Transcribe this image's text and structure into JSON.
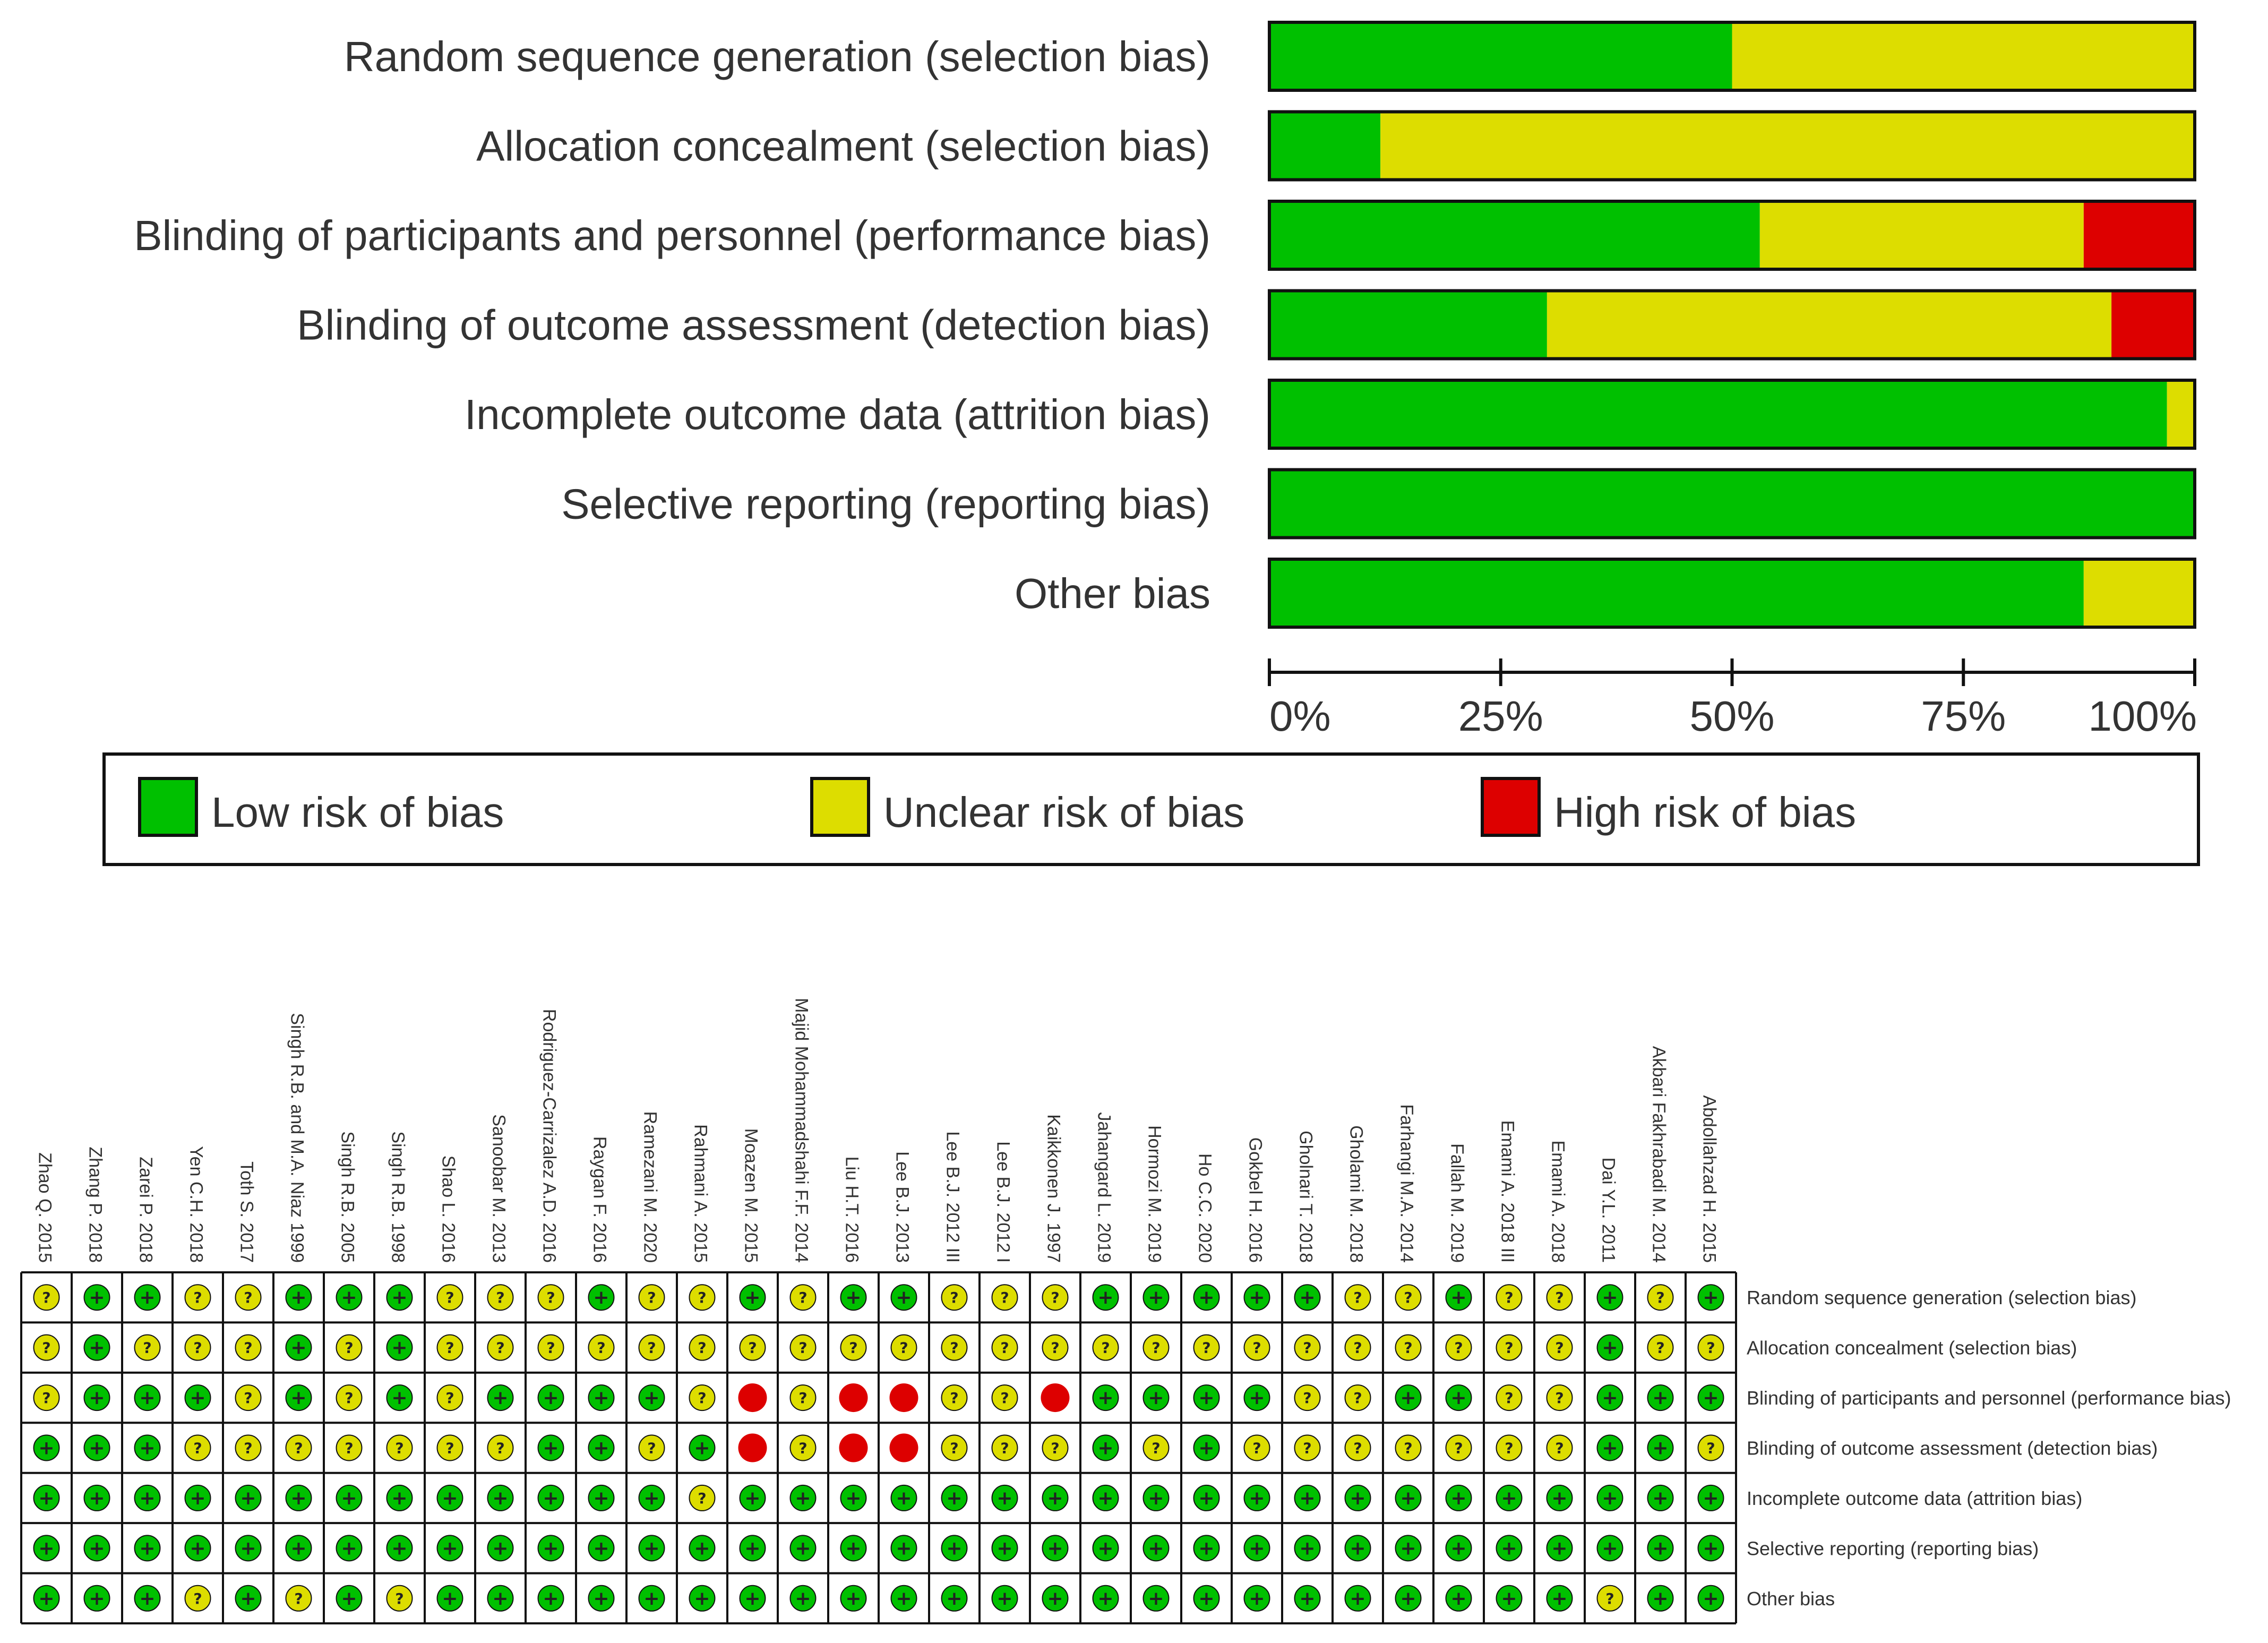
{
  "chart_data": [
    {
      "type": "bar",
      "subtype": "stacked-horizontal-percent",
      "title": "",
      "categories": [
        "Random sequence generation (selection bias)",
        "Allocation concealment (selection bias)",
        "Blinding of participants and personnel (performance bias)",
        "Blinding of outcome assessment (detection bias)",
        "Incomplete outcome data (attrition bias)",
        "Selective reporting (reporting bias)",
        "Other bias"
      ],
      "series": [
        {
          "name": "Low risk of bias",
          "color": "#00c000",
          "values": [
            50,
            12,
            53,
            30,
            97,
            100,
            88
          ]
        },
        {
          "name": "Unclear risk of bias",
          "color": "#dddd00",
          "values": [
            50,
            88,
            35,
            61,
            3,
            0,
            12
          ]
        },
        {
          "name": "High risk of bias",
          "color": "#dd0000",
          "values": [
            0,
            0,
            12,
            9,
            0,
            0,
            0
          ]
        }
      ],
      "xlim": [
        0,
        100
      ],
      "xticks": [
        "0%",
        "25%",
        "50%",
        "75%",
        "100%"
      ],
      "legend": "bottom",
      "legend_labels": [
        "Low risk of bias",
        "Unclear risk of bias",
        "High risk of bias"
      ]
    },
    {
      "type": "table",
      "subtype": "risk-of-bias-summary",
      "studies": [
        "Zhao Q. 2015",
        "Zhang P. 2018",
        "Zarei P. 2018",
        "Yen C.H. 2018",
        "Toth S. 2017",
        "Singh R.B. and M.A. Niaz 1999",
        "Singh R.B. 2005",
        "Singh R.B. 1998",
        "Shao L. 2016",
        "Sanoobar M. 2013",
        "Rodriguez-Carrizalez A.D. 2016",
        "Raygan F. 2016",
        "Ramezani M. 2020",
        "Rahmani A. 2015",
        "Moazen M. 2015",
        "Majid Mohammadshahi F.F. 2014",
        "Liu H.T. 2016",
        "Lee B.J. 2013",
        "Lee B.J. 2012 III",
        "Lee B.J. 2012 I",
        "Kaikkonen J. 1997",
        "Jahangard L. 2019",
        "Hormozi M. 2019",
        "Ho C.C. 2020",
        "Gokbel H. 2016",
        "Gholnari T. 2018",
        "Gholami M. 2018",
        "Farhangi M.A. 2014",
        "Fallah M. 2019",
        "Emami A. 2018 III",
        "Emami A. 2018",
        "Dai Y.L. 2011",
        "Akbari Fakhrabadi M. 2014",
        "Abdollahzad H. 2015"
      ],
      "domains": [
        "Random sequence generation (selection bias)",
        "Allocation concealment (selection bias)",
        "Blinding of participants and personnel (performance bias)",
        "Blinding of outcome assessment (detection bias)",
        "Incomplete outcome data (attrition bias)",
        "Selective reporting (reporting bias)",
        "Other bias"
      ],
      "judgements": [
        [
          "?",
          "+",
          "+",
          "?",
          "?",
          "+",
          "+",
          "+",
          "?",
          "?",
          "?",
          "+",
          "?",
          "?",
          "+",
          "?",
          "+",
          "+",
          "?",
          "?",
          "?",
          "+",
          "+",
          "+",
          "+",
          "+",
          "?",
          "?",
          "+",
          "?",
          "?",
          "+",
          "?",
          "+"
        ],
        [
          "?",
          "+",
          "?",
          "?",
          "?",
          "+",
          "?",
          "+",
          "?",
          "?",
          "?",
          "?",
          "?",
          "?",
          "?",
          "?",
          "?",
          "?",
          "?",
          "?",
          "?",
          "?",
          "?",
          "?",
          "?",
          "?",
          "?",
          "?",
          "?",
          "?",
          "?",
          "+",
          "?",
          "?"
        ],
        [
          "?",
          "+",
          "+",
          "+",
          "?",
          "+",
          "?",
          "+",
          "?",
          "+",
          "+",
          "+",
          "+",
          "?",
          "-",
          "?",
          "-",
          "-",
          "?",
          "?",
          "-",
          "+",
          "+",
          "+",
          "+",
          "?",
          "?",
          "+",
          "+",
          "?",
          "?",
          "+",
          "+",
          "+"
        ],
        [
          "+",
          "+",
          "+",
          "?",
          "?",
          "?",
          "?",
          "?",
          "?",
          "?",
          "+",
          "+",
          "?",
          "+",
          "-",
          "?",
          "-",
          "-",
          "?",
          "?",
          "?",
          "+",
          "?",
          "+",
          "?",
          "?",
          "?",
          "?",
          "?",
          "?",
          "?",
          "+",
          "+",
          "?"
        ],
        [
          "+",
          "+",
          "+",
          "+",
          "+",
          "+",
          "+",
          "+",
          "+",
          "+",
          "+",
          "+",
          "+",
          "?",
          "+",
          "+",
          "+",
          "+",
          "+",
          "+",
          "+",
          "+",
          "+",
          "+",
          "+",
          "+",
          "+",
          "+",
          "+",
          "+",
          "+",
          "+",
          "+",
          "+"
        ],
        [
          "+",
          "+",
          "+",
          "+",
          "+",
          "+",
          "+",
          "+",
          "+",
          "+",
          "+",
          "+",
          "+",
          "+",
          "+",
          "+",
          "+",
          "+",
          "+",
          "+",
          "+",
          "+",
          "+",
          "+",
          "+",
          "+",
          "+",
          "+",
          "+",
          "+",
          "+",
          "+",
          "+",
          "+"
        ],
        [
          "+",
          "+",
          "+",
          "?",
          "+",
          "?",
          "+",
          "?",
          "+",
          "+",
          "+",
          "+",
          "+",
          "+",
          "+",
          "+",
          "+",
          "+",
          "+",
          "+",
          "+",
          "+",
          "+",
          "+",
          "+",
          "+",
          "+",
          "+",
          "+",
          "+",
          "+",
          "?",
          "+",
          "+"
        ]
      ],
      "symbols": {
        "+": "+",
        "?": "?",
        "-": ""
      },
      "colors": {
        "+": "#00c000",
        "?": "#dddd00",
        "-": "#dd0000"
      }
    }
  ]
}
